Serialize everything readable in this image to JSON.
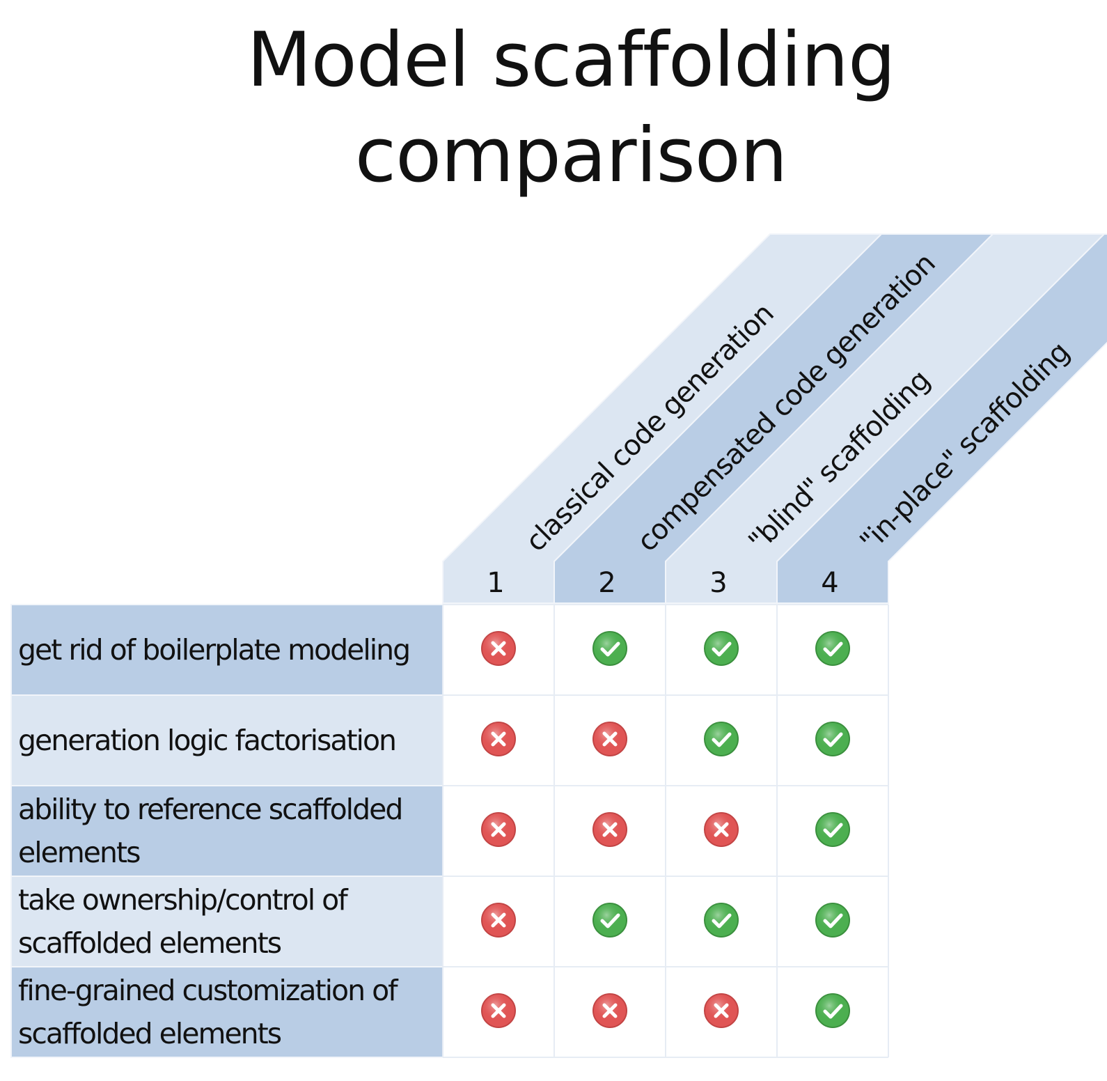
{
  "title": {
    "line1": "Model scaffolding",
    "line2": "comparison"
  },
  "columns": [
    {
      "number": "1",
      "label": "classical code generation"
    },
    {
      "number": "2",
      "label": "compensated code generation"
    },
    {
      "number": "3",
      "label": "\"blind\" scaffolding"
    },
    {
      "number": "4",
      "label": "\"in-place\" scaffolding"
    }
  ],
  "rows": [
    {
      "label": "get rid of boilerplate modeling",
      "values": [
        false,
        true,
        true,
        true
      ]
    },
    {
      "label": "generation logic factorisation",
      "values": [
        false,
        false,
        true,
        true
      ]
    },
    {
      "label": "ability to reference scaffolded elements",
      "values": [
        false,
        false,
        false,
        true
      ]
    },
    {
      "label": "take ownership/control of scaffolded elements",
      "values": [
        false,
        true,
        true,
        true
      ]
    },
    {
      "label": "fine-grained customization of scaffolded elements",
      "values": [
        false,
        false,
        false,
        true
      ]
    }
  ],
  "colors": {
    "light_band": "#dce6f2",
    "dark_band": "#b9cde5",
    "grid_line": "#f2f5fa",
    "check": "#4caf50",
    "cross": "#e05555"
  },
  "icons": {
    "yes": "check-circle-icon",
    "no": "cross-circle-icon"
  }
}
